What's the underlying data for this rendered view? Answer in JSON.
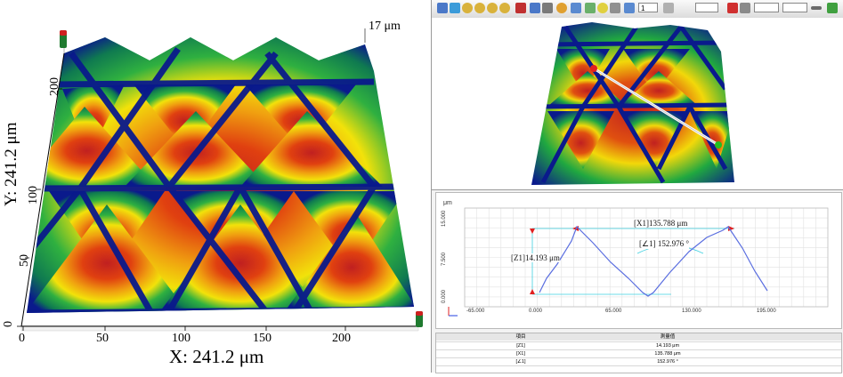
{
  "left_view": {
    "z_max_label": "17 μm",
    "x_axis_title": "X: 241.2 μm",
    "y_axis_title": "Y: 241.2 μm",
    "x_ticks": [
      "0",
      "50",
      "100",
      "150",
      "200"
    ],
    "y_ticks": [
      "0",
      "50",
      "100",
      "200"
    ]
  },
  "toolbar": {
    "select_value": "1",
    "icons": [
      "home-icon",
      "zoom-icon",
      "rotate-icon",
      "pan-icon",
      "view-icon",
      "color-icon",
      "chart-icon",
      "anchor-icon",
      "ruler-icon",
      "dot-icon",
      "arrows-icon",
      "grid-icon",
      "light-icon",
      "frame-icon",
      "box-icon",
      "settings-icon"
    ],
    "right_icons": [
      "close-red-icon",
      "tools-icon",
      "line-icon",
      "check-icon"
    ]
  },
  "profile": {
    "y_unit": "μm",
    "y_ticks": [
      "15.000",
      "7.500",
      "0.000"
    ],
    "x_ticks": [
      "-65.000",
      "0.000",
      "65.000",
      "130.000",
      "195.000"
    ],
    "measure_x1": "[X1]135.788 μm",
    "measure_angle": "[∠1] 152.976 °",
    "measure_z1": "[Z1]14.193 μm"
  },
  "table": {
    "headers": [
      "項目",
      "測量值"
    ],
    "rows": [
      {
        "item": "[Z1]",
        "value": "14.193 μm"
      },
      {
        "item": "[X1]",
        "value": "135.788 μm"
      },
      {
        "item": "[∠1]",
        "value": "152.976 °"
      }
    ]
  },
  "colors": {
    "ridge_blue": "#0a1a8c",
    "peak_red": "#d01010",
    "mid_green": "#1aa84a",
    "yellow": "#f5e60a",
    "profile_line": "#5a6ee0",
    "annotation_cyan": "#3ed0e0",
    "arrow_red": "#e02020"
  }
}
